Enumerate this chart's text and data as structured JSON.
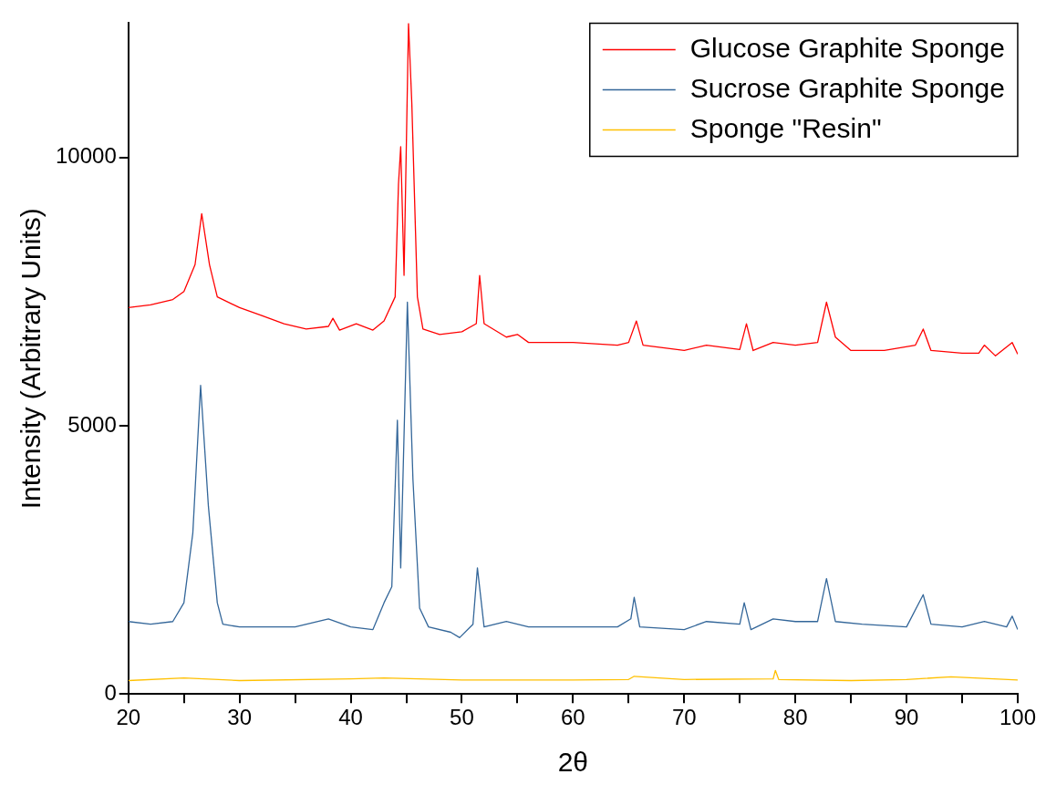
{
  "chart_data": {
    "type": "line",
    "xlabel": "2θ",
    "ylabel": "Intensity (Arbitrary Units)",
    "xlim": [
      20,
      100
    ],
    "ylim": [
      0,
      12500
    ],
    "xticks": [
      20,
      {
        "value": 25,
        "label": null
      },
      30,
      {
        "value": 35,
        "label": null
      },
      40,
      {
        "value": 45,
        "label": null
      },
      50,
      {
        "value": 55,
        "label": null
      },
      60,
      {
        "value": 65,
        "label": null
      },
      70,
      {
        "value": 75,
        "label": null
      },
      80,
      {
        "value": 85,
        "label": null
      },
      90,
      {
        "value": 95,
        "label": null
      },
      100
    ],
    "yticks": [
      0,
      5000,
      10000
    ],
    "grid": false,
    "legend": "top right",
    "marker": "none",
    "line_style": "solid",
    "series": [
      {
        "name": "Glucose Graphite Sponge",
        "color": "#ff0000",
        "x": [
          20,
          22,
          24,
          25,
          26,
          26.6,
          27.3,
          28,
          30,
          32,
          34,
          36,
          38,
          38.4,
          39,
          40.5,
          42,
          43,
          44,
          44.3,
          44.5,
          44.8,
          45.2,
          45.5,
          46,
          46.5,
          48,
          50,
          51.3,
          51.6,
          52,
          54,
          55,
          56,
          60,
          64,
          65,
          65.7,
          66.3,
          70,
          72,
          75,
          75.6,
          76.2,
          78,
          80,
          82,
          82.8,
          83.6,
          85,
          88,
          90.8,
          91.5,
          92.2,
          95,
          96.5,
          97,
          98,
          99.5,
          100
        ],
        "values": [
          7200,
          7250,
          7350,
          7500,
          8000,
          8950,
          8000,
          7400,
          7200,
          7050,
          6900,
          6800,
          6850,
          7000,
          6780,
          6900,
          6780,
          6950,
          7400,
          9500,
          10200,
          7800,
          12500,
          11000,
          7400,
          6800,
          6700,
          6750,
          6900,
          7800,
          6900,
          6650,
          6700,
          6550,
          6550,
          6500,
          6550,
          6950,
          6500,
          6400,
          6500,
          6420,
          6900,
          6400,
          6550,
          6500,
          6550,
          7300,
          6650,
          6400,
          6400,
          6500,
          6800,
          6400,
          6350,
          6350,
          6500,
          6300,
          6550,
          6330
        ]
      },
      {
        "name": "Sucrose Graphite Sponge",
        "color": "#336699",
        "x": [
          20,
          22,
          24,
          25,
          25.8,
          26.5,
          27.2,
          28,
          28.5,
          30,
          35,
          38,
          40,
          42,
          43,
          43.7,
          44.2,
          44.5,
          45.1,
          45.6,
          46.2,
          47,
          49,
          49.8,
          51,
          51.4,
          52,
          54,
          56,
          60,
          64,
          65.2,
          65.5,
          66,
          70,
          72,
          75,
          75.4,
          76,
          78,
          80,
          82,
          82.8,
          83.6,
          86,
          90,
          91.5,
          92.2,
          95,
          97,
          99,
          99.5,
          100
        ],
        "values": [
          1350,
          1300,
          1350,
          1700,
          3000,
          5750,
          3500,
          1700,
          1300,
          1250,
          1250,
          1400,
          1250,
          1200,
          1700,
          2000,
          5100,
          2350,
          7300,
          4000,
          1600,
          1250,
          1150,
          1050,
          1300,
          2350,
          1250,
          1350,
          1250,
          1250,
          1250,
          1400,
          1800,
          1250,
          1200,
          1350,
          1300,
          1700,
          1200,
          1400,
          1350,
          1350,
          2150,
          1350,
          1300,
          1250,
          1850,
          1300,
          1250,
          1350,
          1250,
          1450,
          1200
        ]
      },
      {
        "name": "Sponge \"Resin\"",
        "color": "#ffc000",
        "x": [
          20,
          25,
          30,
          40,
          43,
          50,
          60,
          65,
          65.5,
          70,
          78,
          78.2,
          78.5,
          85,
          90,
          94,
          100
        ],
        "values": [
          250,
          300,
          250,
          280,
          300,
          260,
          260,
          270,
          330,
          270,
          280,
          440,
          270,
          250,
          270,
          320,
          260
        ]
      }
    ]
  }
}
